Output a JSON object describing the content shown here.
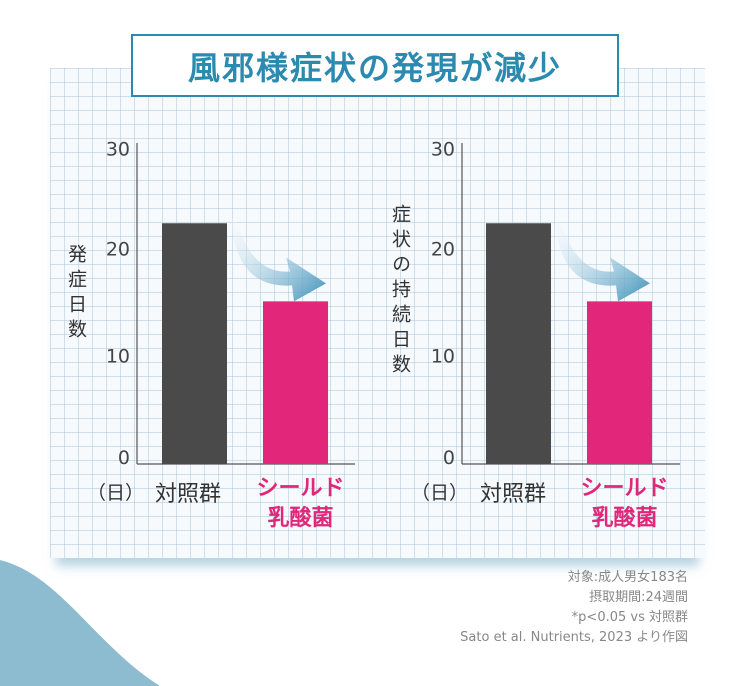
{
  "title": "風邪様症状の発現が減少",
  "colors": {
    "accent": "#2b8ab0",
    "control": "#4a4a4a",
    "product": "#e2267a",
    "arrow": "#3a8fb8"
  },
  "unit_label": "（日）",
  "chart_data": [
    {
      "type": "bar",
      "ylabel": "発症日数",
      "ylim": [
        0,
        30
      ],
      "yticks": [
        0,
        10,
        20,
        30
      ],
      "categories": [
        "対照群",
        "シールド\n乳酸菌"
      ],
      "values": [
        22.5,
        15.2
      ]
    },
    {
      "type": "bar",
      "ylabel": "症状の持続日数",
      "ylim": [
        0,
        30
      ],
      "yticks": [
        0,
        10,
        20,
        30
      ],
      "categories": [
        "対照群",
        "シールド\n乳酸菌"
      ],
      "values": [
        22.5,
        15.2
      ]
    }
  ],
  "notes": [
    "対象:成人男女183名",
    "摂取期間:24週間",
    "*p<0.05 vs 対照群",
    "Sato et al. Nutrients, 2023 より作図"
  ]
}
